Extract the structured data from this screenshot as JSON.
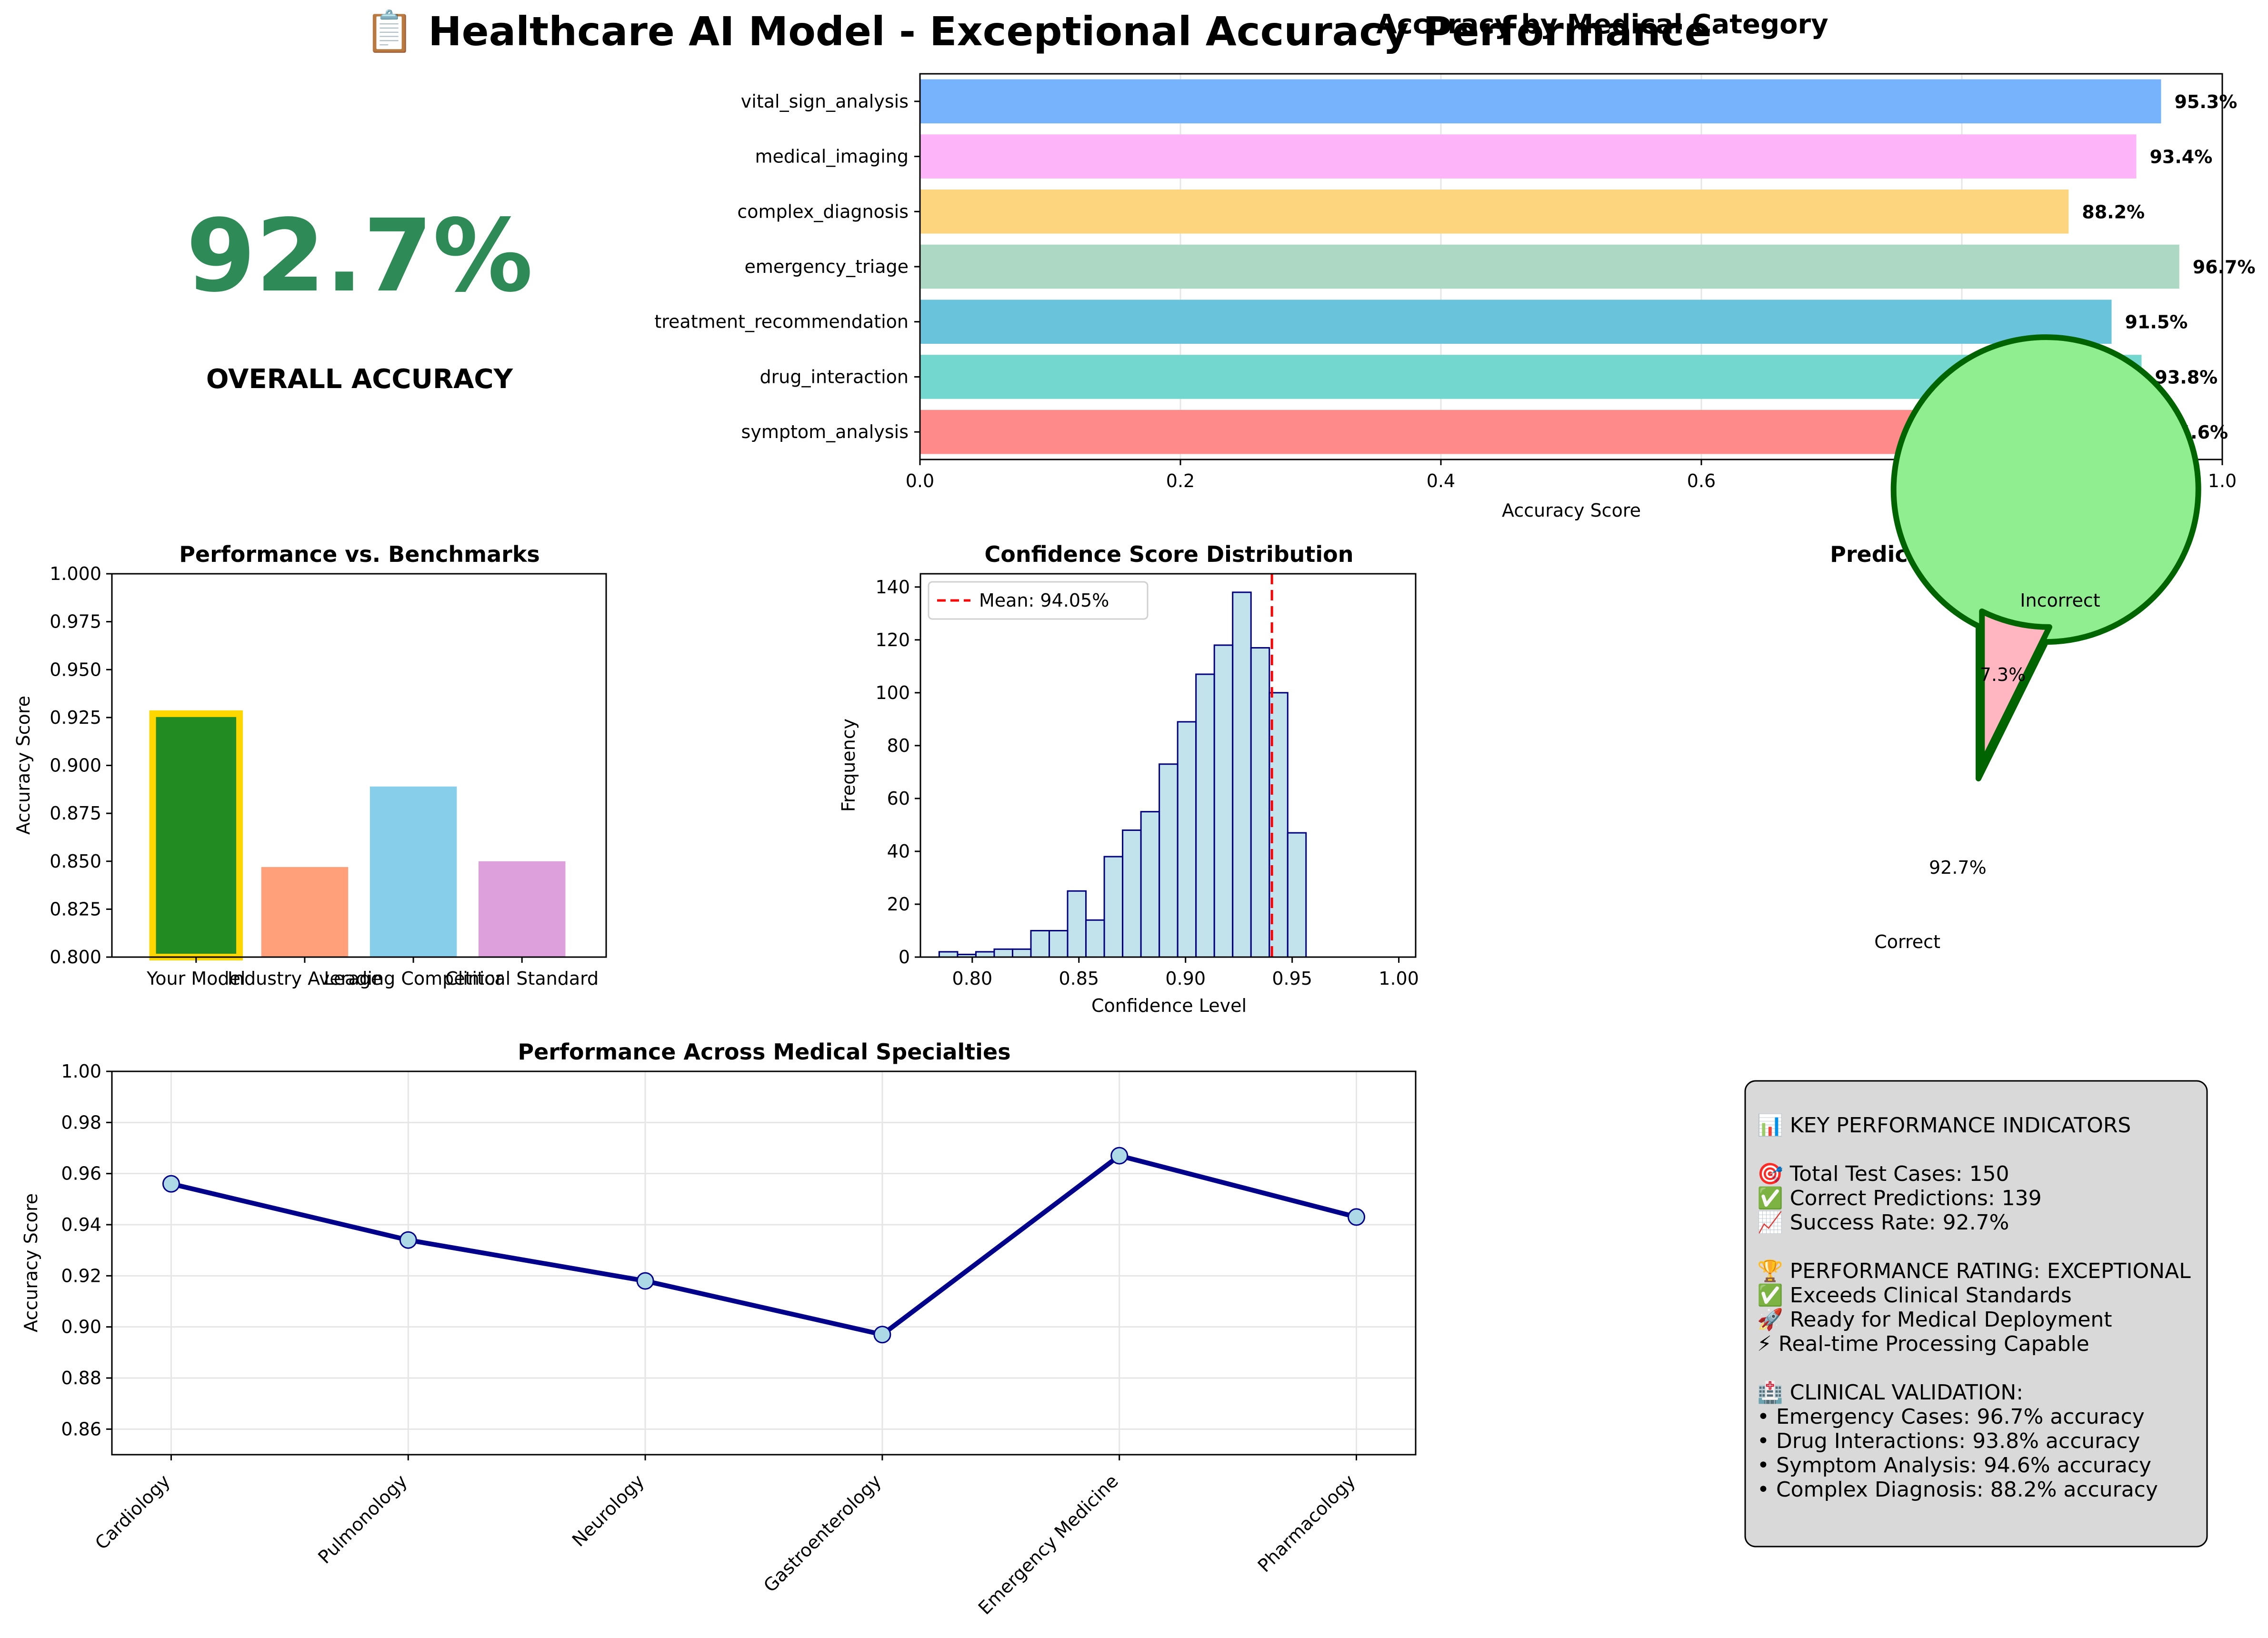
{
  "figure": {
    "title": "📋 Healthcare AI Model - Exceptional Accuracy Performance"
  },
  "kpi": {
    "value": "92.7%",
    "label": "OVERALL ACCURACY",
    "color": "#2e8b57"
  },
  "summary_box": {
    "lines": [
      "📊 KEY PERFORMANCE INDICATORS",
      "",
      "🎯 Total Test Cases: 150",
      "✅ Correct Predictions: 139",
      "📈 Success Rate: 92.7%",
      "",
      "🏆 PERFORMANCE RATING: EXCEPTIONAL",
      "✅ Exceeds Clinical Standards",
      "🚀 Ready for Medical Deployment",
      "⚡ Real-time Processing Capable",
      "",
      "🏥 CLINICAL VALIDATION:",
      "• Emergency Cases: 96.7% accuracy",
      "• Drug Interactions: 93.8% accuracy",
      "• Symptom Analysis: 94.6% accuracy",
      "• Complex Diagnosis: 88.2% accuracy"
    ]
  },
  "chart_data": [
    {
      "id": "category",
      "type": "bar",
      "orientation": "horizontal",
      "title": "Accuracy by Medical Category",
      "xlabel": "Accuracy Score",
      "ylabel": "",
      "categories": [
        "symptom_analysis",
        "drug_interaction",
        "treatment_recommendation",
        "emergency_triage",
        "complex_diagnosis",
        "medical_imaging",
        "vital_sign_analysis"
      ],
      "values": [
        0.946,
        0.938,
        0.915,
        0.967,
        0.882,
        0.934,
        0.953
      ],
      "value_labels": [
        "94.6%",
        "93.8%",
        "91.5%",
        "96.7%",
        "88.2%",
        "93.4%",
        "95.3%"
      ],
      "colors": [
        "#ff8a8a",
        "#74d7cf",
        "#69c3db",
        "#acd8c4",
        "#fdd57e",
        "#feb4f8",
        "#77b3fd"
      ],
      "xlim": [
        0,
        1.0
      ],
      "xticks": [
        0.0,
        0.2,
        0.4,
        0.6,
        0.8,
        1.0
      ],
      "xtick_labels": [
        "0.0",
        "0.2",
        "0.4",
        "0.6",
        "0.8",
        "1.0"
      ],
      "grid": "x"
    },
    {
      "id": "benchmarks",
      "type": "bar",
      "title": "Performance vs. Benchmarks",
      "xlabel": "",
      "ylabel": "Accuracy Score",
      "categories": [
        "Your Model",
        "Industry Average",
        "Leading Competitor",
        "Clinical Standard"
      ],
      "values": [
        0.927,
        0.847,
        0.889,
        0.85
      ],
      "colors": [
        "#228b22",
        "#ffa07a",
        "#87ceeb",
        "#dda0dd"
      ],
      "highlight_edge": "#ffd700",
      "ylim": [
        0.8,
        1.0
      ],
      "yticks": [
        0.8,
        0.825,
        0.85,
        0.875,
        0.9,
        0.925,
        0.95,
        0.975,
        1.0
      ],
      "ytick_labels": [
        "0.800",
        "0.825",
        "0.850",
        "0.875",
        "0.900",
        "0.925",
        "0.950",
        "0.975",
        "1.000"
      ]
    },
    {
      "id": "confidence",
      "type": "bar",
      "subtype": "histogram",
      "title": "Confidence Score Distribution",
      "xlabel": "Confidence Level",
      "ylabel": "Frequency",
      "bin_start": 0.7845,
      "bin_width": 0.0086,
      "counts": [
        2,
        1,
        2,
        3,
        3,
        10,
        10,
        25,
        14,
        38,
        48,
        55,
        73,
        89,
        107,
        118,
        138,
        117,
        100,
        47
      ],
      "bar_color": "#add8e6",
      "edge_color": "#000080",
      "mean": 0.9405,
      "mean_label": "Mean: 94.05%",
      "mean_color": "#ff0000",
      "xlim": [
        0.7757,
        1.0079
      ],
      "xticks": [
        0.8,
        0.85,
        0.9,
        0.95,
        1.0
      ],
      "xtick_labels": [
        "0.80",
        "0.85",
        "0.90",
        "0.95",
        "1.00"
      ],
      "ylim": [
        0,
        145
      ],
      "yticks": [
        0,
        20,
        40,
        60,
        80,
        100,
        120,
        140
      ],
      "ytick_labels": [
        "0",
        "20",
        "40",
        "60",
        "80",
        "100",
        "120",
        "140"
      ]
    },
    {
      "id": "success",
      "type": "pie",
      "title": "Prediction Success Rate",
      "labels": [
        "Correct",
        "Incorrect"
      ],
      "values": [
        92.7,
        7.3
      ],
      "pct_labels": [
        "92.7%",
        "7.3%"
      ],
      "colors": [
        "#90ee90",
        "#ffb6c1"
      ],
      "edge_color": "#006400",
      "explode": [
        0,
        0.1
      ],
      "startangle": 90
    },
    {
      "id": "specialties",
      "type": "line",
      "title": "Performance Across Medical Specialties",
      "xlabel": "",
      "ylabel": "Accuracy Score",
      "categories": [
        "Cardiology",
        "Pulmonology",
        "Neurology",
        "Gastroenterology",
        "Emergency Medicine",
        "Pharmacology"
      ],
      "values": [
        0.956,
        0.934,
        0.918,
        0.897,
        0.967,
        0.943
      ],
      "line_color": "#00008b",
      "marker_color": "#add8e6",
      "ylim": [
        0.85,
        1.0
      ],
      "yticks": [
        0.86,
        0.88,
        0.9,
        0.92,
        0.94,
        0.96,
        0.98,
        1.0
      ],
      "ytick_labels": [
        "0.86",
        "0.88",
        "0.90",
        "0.92",
        "0.94",
        "0.96",
        "0.98",
        "1.00"
      ],
      "grid": "both"
    }
  ]
}
